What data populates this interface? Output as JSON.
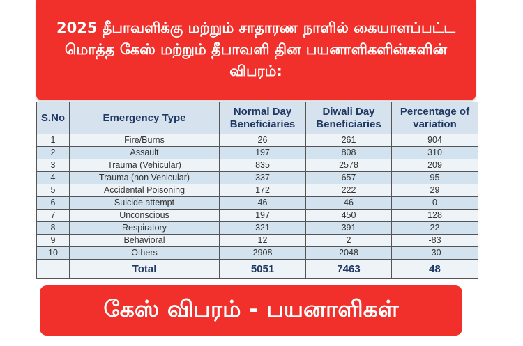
{
  "title": "2025 தீபாவளிக்கு மற்றும் சாதாரண நாளில் கையாளப்பட்ட மொத்த கேஸ் மற்றும் தீபாவளி தின பயனாளிகளின்களின் விபரம்:",
  "table": {
    "headers": [
      "S.No",
      "Emergency Type",
      "Normal Day Beneficiaries",
      "Diwali Day Beneficiaries",
      "Percentage of variation"
    ],
    "rows": [
      [
        "1",
        "Fire/Burns",
        "26",
        "261",
        "904"
      ],
      [
        "2",
        "Assault",
        "197",
        "808",
        "310"
      ],
      [
        "3",
        "Trauma (Vehicular)",
        "835",
        "2578",
        "209"
      ],
      [
        "4",
        "Trauma (non Vehicular)",
        "337",
        "657",
        "95"
      ],
      [
        "5",
        "Accidental Poisoning",
        "172",
        "222",
        "29"
      ],
      [
        "6",
        "Suicide attempt",
        "46",
        "46",
        "0"
      ],
      [
        "7",
        "Unconscious",
        "197",
        "450",
        "128"
      ],
      [
        "8",
        "Respiratory",
        "321",
        "391",
        "22"
      ],
      [
        "9",
        "Behavioral",
        "12",
        "2",
        "-83"
      ],
      [
        "10",
        "Others",
        "2908",
        "2048",
        "-30"
      ]
    ],
    "total": [
      "",
      "Total",
      "5051",
      "7463",
      "48"
    ]
  },
  "footer": "கேஸ் விபரம் - பயனாளிகள்",
  "colors": {
    "banner_red": "#f2302b",
    "header_text": "#1f3864",
    "row_light": "#eef3f8",
    "row_blue": "#d2e2ee"
  }
}
